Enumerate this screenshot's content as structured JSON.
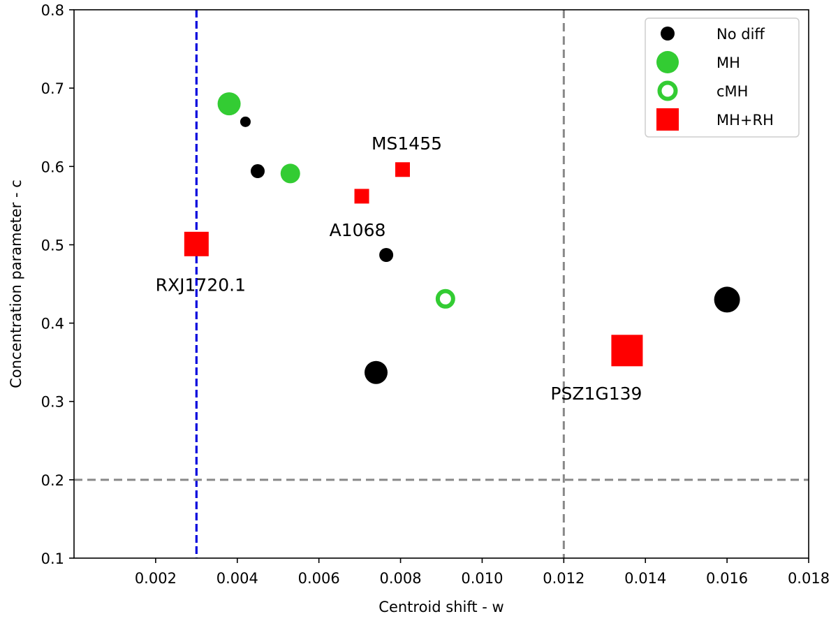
{
  "chart_data": {
    "type": "scatter",
    "xlabel": "Centroid shift - w",
    "ylabel": "Concentration parameter - c",
    "xlim": [
      0.0,
      0.018
    ],
    "ylim": [
      0.1,
      0.8
    ],
    "xticks": [
      "0.002",
      "0.004",
      "0.006",
      "0.008",
      "0.010",
      "0.012",
      "0.014",
      "0.016",
      "0.018"
    ],
    "xtick_values": [
      0.002,
      0.004,
      0.006,
      0.008,
      0.01,
      0.012,
      0.014,
      0.016,
      0.018
    ],
    "yticks": [
      "0.1",
      "0.2",
      "0.3",
      "0.4",
      "0.5",
      "0.6",
      "0.7",
      "0.8"
    ],
    "ytick_values": [
      0.1,
      0.2,
      0.3,
      0.4,
      0.5,
      0.6,
      0.7,
      0.8
    ],
    "grid": false,
    "legend_position": "top-right",
    "colors": {
      "no_diff": "#000000",
      "mh": "#33cc33",
      "mh_rh": "#ff0000",
      "blue_line": "#0000dd",
      "gray_line": "#888888"
    },
    "reference_lines": [
      {
        "orientation": "vertical",
        "value": 0.003,
        "color": "blue",
        "style": "dashed"
      },
      {
        "orientation": "vertical",
        "value": 0.012,
        "color": "gray",
        "style": "dashed"
      },
      {
        "orientation": "horizontal",
        "value": 0.2,
        "color": "gray",
        "style": "dashed"
      }
    ],
    "series": [
      {
        "name": "No diff",
        "marker": "filled-circle",
        "points": [
          {
            "x": 0.0042,
            "y": 0.657,
            "size": "small"
          },
          {
            "x": 0.0045,
            "y": 0.594,
            "size": "medium"
          },
          {
            "x": 0.00765,
            "y": 0.487,
            "size": "medium"
          },
          {
            "x": 0.0074,
            "y": 0.337,
            "size": "large"
          },
          {
            "x": 0.016,
            "y": 0.43,
            "size": "xlarge"
          }
        ]
      },
      {
        "name": "MH",
        "marker": "filled-circle",
        "points": [
          {
            "x": 0.0038,
            "y": 0.68,
            "size": "large"
          },
          {
            "x": 0.0053,
            "y": 0.591,
            "size": "medium-large"
          }
        ]
      },
      {
        "name": "cMH",
        "marker": "open-circle",
        "points": [
          {
            "x": 0.0091,
            "y": 0.431,
            "size": "medium-large"
          }
        ]
      },
      {
        "name": "MH+RH",
        "marker": "square",
        "points": [
          {
            "x": 0.003,
            "y": 0.501,
            "size": "large",
            "label": "RXJ1720.1"
          },
          {
            "x": 0.00705,
            "y": 0.562,
            "size": "medium",
            "label": "A1068"
          },
          {
            "x": 0.00805,
            "y": 0.596,
            "size": "medium",
            "label": "MS1455"
          },
          {
            "x": 0.01355,
            "y": 0.365,
            "size": "xlarge",
            "label": "PSZ1G139"
          }
        ]
      }
    ],
    "annotations": [
      "MS1455",
      "A1068",
      "RXJ1720.1",
      "PSZ1G139"
    ],
    "legend": [
      "No diff",
      "MH",
      "cMH",
      "MH+RH"
    ]
  }
}
